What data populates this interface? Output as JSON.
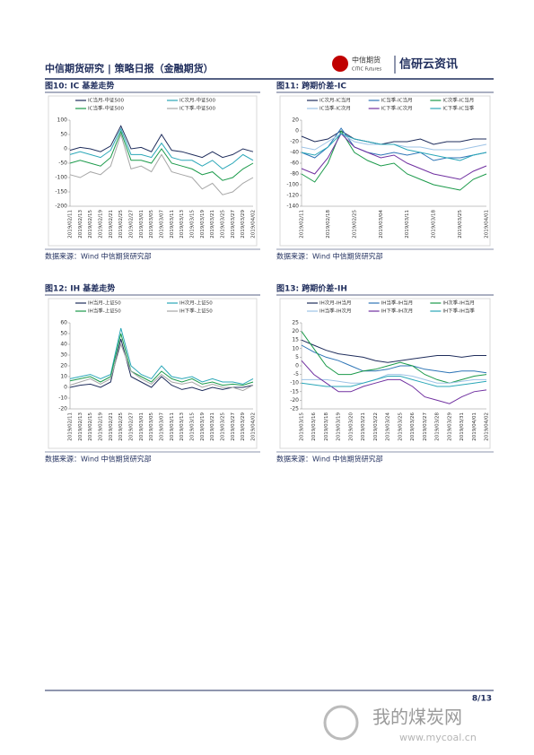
{
  "header": {
    "title": "中信期货研究 | 策略日报（金融期货）",
    "logo_cn": "中信期货",
    "logo_en": "CITIC Futures",
    "brand": "信研云资讯"
  },
  "footer": {
    "page": "8/13"
  },
  "watermark": {
    "cn": "我的煤炭网",
    "url": "www.mycoal.cn"
  },
  "chart_data": [
    {
      "type": "line",
      "title": "图10: IC 基差走势",
      "source": "数据来源：Wind 中信期货研究部",
      "categories": [
        "2019/02/11",
        "2019/02/13",
        "2019/02/15",
        "2019/02/19",
        "2019/02/21",
        "2019/02/25",
        "2019/02/27",
        "2019/03/01",
        "2019/03/05",
        "2019/03/07",
        "2019/03/11",
        "2019/03/13",
        "2019/03/15",
        "2019/03/19",
        "2019/03/21",
        "2019/03/25",
        "2019/03/27",
        "2019/03/29",
        "2019/04/02"
      ],
      "ylim": [
        -200,
        100
      ],
      "yticks": [
        -200,
        -150,
        -100,
        -50,
        0,
        50,
        100
      ],
      "series": [
        {
          "name": "IC当月-中证500",
          "color": "#1f2d5c",
          "values": [
            -5,
            5,
            0,
            -10,
            10,
            80,
            0,
            5,
            -10,
            50,
            -5,
            -10,
            -20,
            -30,
            -10,
            -30,
            -20,
            0,
            -10
          ]
        },
        {
          "name": "IC次月-中证500",
          "color": "#2aa7b8",
          "values": [
            -20,
            -10,
            -20,
            -30,
            -5,
            70,
            -20,
            -20,
            -30,
            20,
            -30,
            -40,
            -40,
            -60,
            -40,
            -70,
            -50,
            -20,
            -40
          ]
        },
        {
          "name": "IC当季-中证500",
          "color": "#1b9a4a",
          "values": [
            -50,
            -40,
            -50,
            -60,
            -30,
            60,
            -40,
            -40,
            -50,
            0,
            -50,
            -60,
            -70,
            -90,
            -80,
            -110,
            -100,
            -70,
            -50
          ]
        },
        {
          "name": "IC下季-中证500",
          "color": "#a6a6a6",
          "values": [
            -90,
            -100,
            -80,
            -90,
            -60,
            50,
            -70,
            -60,
            -80,
            -20,
            -80,
            -90,
            -100,
            -140,
            -120,
            -160,
            -150,
            -120,
            -100
          ]
        }
      ]
    },
    {
      "type": "line",
      "title": "图11: 跨期价差-IC",
      "source": "数据来源：Wind 中信期货研究部",
      "categories": [
        "2019/02/11",
        null,
        "2019/02/18",
        null,
        "2019/02/25",
        null,
        "2019/03/04",
        null,
        "2019/03/11",
        null,
        "2019/03/18",
        null,
        "2019/03/25",
        null,
        "2019/04/01"
      ],
      "ylim": [
        -140,
        20
      ],
      "yticks": [
        -140,
        -120,
        -100,
        -80,
        -60,
        -40,
        -20,
        0,
        20
      ],
      "series": [
        {
          "name": "IC次月-IC当月",
          "color": "#1f2d5c",
          "values": [
            -10,
            -20,
            -15,
            0,
            -15,
            -20,
            -25,
            -20,
            -20,
            -15,
            -25,
            -20,
            -20,
            -15,
            -15
          ]
        },
        {
          "name": "IC当季-IC当月",
          "color": "#2e75b6",
          "values": [
            -40,
            -50,
            -30,
            5,
            -30,
            -40,
            -45,
            -40,
            -45,
            -40,
            -55,
            -50,
            -50,
            -45,
            -40
          ]
        },
        {
          "name": "IC次季-IC当月",
          "color": "#1b9a4a",
          "values": [
            -80,
            -95,
            -60,
            0,
            -40,
            -55,
            -65,
            -60,
            -80,
            -90,
            -100,
            -105,
            -110,
            -90,
            -80
          ]
        },
        {
          "name": "IC当季-IC次月",
          "color": "#9dc3e6",
          "values": [
            -30,
            -35,
            -20,
            -5,
            -20,
            -25,
            -25,
            -25,
            -30,
            -30,
            -35,
            -35,
            -35,
            -30,
            -25
          ]
        },
        {
          "name": "IC下季-IC次月",
          "color": "#7030a0",
          "values": [
            -70,
            -80,
            -50,
            -5,
            -30,
            -40,
            -50,
            -45,
            -60,
            -70,
            -80,
            -85,
            -90,
            -75,
            -65
          ]
        },
        {
          "name": "IC下季-IC当季",
          "color": "#2aa7b8",
          "values": [
            -40,
            -45,
            -30,
            -5,
            -15,
            -20,
            -25,
            -25,
            -35,
            -40,
            -45,
            -50,
            -55,
            -45,
            -40
          ]
        }
      ]
    },
    {
      "type": "line",
      "title": "图12: IH 基差走势",
      "source": "数据来源：Wind 中信期货研究部",
      "categories": [
        "2019/02/11",
        "2019/02/13",
        "2019/02/15",
        "2019/02/19",
        "2019/02/21",
        "2019/02/25",
        "2019/02/27",
        "2019/03/01",
        "2019/03/05",
        "2019/03/07",
        "2019/03/11",
        "2019/03/13",
        "2019/03/15",
        "2019/03/19",
        "2019/03/21",
        "2019/03/25",
        "2019/03/27",
        "2019/03/29",
        "2019/04/02"
      ],
      "ylim": [
        -20,
        60
      ],
      "yticks": [
        -20,
        -10,
        0,
        10,
        20,
        30,
        40,
        50,
        60
      ],
      "series": [
        {
          "name": "IH当月-上证50",
          "color": "#1f2d5c",
          "values": [
            0,
            2,
            3,
            0,
            5,
            45,
            10,
            5,
            0,
            10,
            2,
            -2,
            0,
            -3,
            0,
            -2,
            0,
            0,
            2
          ]
        },
        {
          "name": "IH次月-上证50",
          "color": "#2aa7b8",
          "values": [
            8,
            10,
            12,
            8,
            12,
            55,
            20,
            12,
            8,
            20,
            10,
            8,
            10,
            5,
            8,
            5,
            5,
            3,
            8
          ]
        },
        {
          "name": "IH当季-上证50",
          "color": "#1b9a4a",
          "values": [
            6,
            8,
            10,
            5,
            10,
            50,
            15,
            10,
            5,
            15,
            8,
            5,
            8,
            3,
            5,
            2,
            3,
            2,
            5
          ]
        },
        {
          "name": "IH下季-上证50",
          "color": "#a6a6a6",
          "values": [
            2,
            5,
            8,
            3,
            8,
            40,
            15,
            8,
            3,
            12,
            5,
            3,
            5,
            0,
            3,
            0,
            0,
            -3,
            2
          ]
        }
      ]
    },
    {
      "type": "line",
      "title": "图13: 跨期价差-IH",
      "source": "数据来源：Wind 中信期货研究部",
      "categories": [
        "2019/03/15",
        "2019/03/16",
        "2019/03/18",
        "2019/03/19",
        "2019/03/20",
        "2019/03/21",
        "2019/03/22",
        "2019/03/24",
        "2019/03/25",
        "2019/03/26",
        "2019/03/27",
        "2019/03/28",
        "2019/03/29",
        "2019/03/31",
        "2019/04/01",
        "2019/04/02"
      ],
      "ylim": [
        -25,
        25
      ],
      "yticks": [
        -25,
        -20,
        -15,
        -10,
        -5,
        0,
        5,
        10,
        15,
        20,
        25
      ],
      "series": [
        {
          "name": "IH次月-IH当月",
          "color": "#1f2d5c",
          "values": [
            15,
            12,
            9,
            7,
            6,
            5,
            3,
            2,
            3,
            4,
            5,
            6,
            6,
            5,
            6,
            6
          ]
        },
        {
          "name": "IH当季-IH当月",
          "color": "#2e75b6",
          "values": [
            12,
            8,
            5,
            3,
            0,
            -3,
            -3,
            -2,
            0,
            0,
            -2,
            -3,
            -4,
            -3,
            -3,
            -4
          ]
        },
        {
          "name": "IH次季-IH当月",
          "color": "#1b9a4a",
          "values": [
            20,
            10,
            0,
            -5,
            -5,
            -3,
            -2,
            0,
            2,
            0,
            -5,
            -8,
            -10,
            -8,
            -6,
            -5
          ]
        },
        {
          "name": "IH当季-IH次月",
          "color": "#9dc3e6",
          "values": [
            -8,
            -8,
            -8,
            -9,
            -10,
            -10,
            -8,
            -5,
            -5,
            -6,
            -8,
            -10,
            -10,
            -9,
            -8,
            -8
          ]
        },
        {
          "name": "IH下季-IH次月",
          "color": "#7030a0",
          "values": [
            3,
            -5,
            -10,
            -15,
            -15,
            -12,
            -10,
            -8,
            -8,
            -12,
            -18,
            -20,
            -22,
            -18,
            -15,
            -14
          ]
        },
        {
          "name": "IH下季-IH当季",
          "color": "#2aa7b8",
          "values": [
            -10,
            -11,
            -12,
            -12,
            -12,
            -10,
            -8,
            -6,
            -6,
            -8,
            -10,
            -12,
            -12,
            -11,
            -10,
            -9
          ]
        }
      ]
    }
  ]
}
